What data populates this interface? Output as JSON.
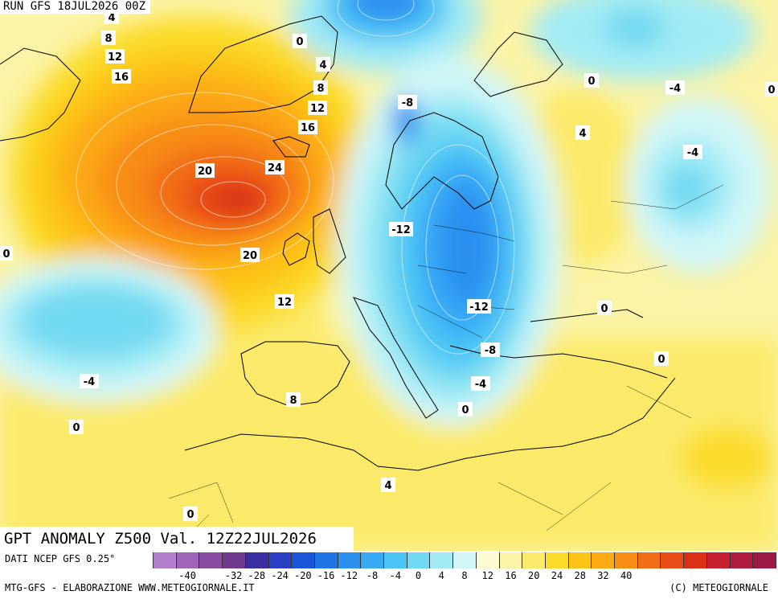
{
  "header": {
    "run": "RUN GFS 18JUL2026 00Z"
  },
  "title": "GPT ANOMALY Z500 Val. 12Z22JUL2026",
  "source": "DATI NCEP GFS 0.25°",
  "footer_left": "MTG-GFS - ELABORAZIONE WWW.METEOGIORNALE.IT",
  "footer_right": "(C) METEOGIORNALE",
  "colorbar": {
    "tick_labels": [
      "-40",
      "-32",
      "-28",
      "-24",
      "-20",
      "-16",
      "-12",
      "-8",
      "-4",
      "0",
      "4",
      "8",
      "12",
      "16",
      "20",
      "24",
      "28",
      "32",
      "40"
    ],
    "colors": [
      "#b27fcc",
      "#9e64b8",
      "#8a4ca3",
      "#6e3a8f",
      "#3b2ea0",
      "#2b3fc4",
      "#1a57d8",
      "#1f74e6",
      "#2a90f0",
      "#37a9f5",
      "#4cc4f5",
      "#72d9f2",
      "#a3ebf4",
      "#d2f6f8",
      "#fdfbd2",
      "#fbf3a6",
      "#fbea6b",
      "#fbdc2a",
      "#fcc416",
      "#fca914",
      "#f88d13",
      "#f26e14",
      "#e94c17",
      "#d93016",
      "#c81f30",
      "#b11b3e",
      "#9d1a47"
    ]
  },
  "map_labels": [
    "4",
    "8",
    "12",
    "16",
    "0",
    "4",
    "8",
    "12",
    "16",
    "20",
    "24",
    "-8",
    "0",
    "-4",
    "4",
    "-4",
    "0",
    "-12",
    "20",
    "12",
    "-12",
    "0",
    "-8",
    "0",
    "-4",
    "-4",
    "8",
    "0",
    "0",
    "4",
    "0"
  ],
  "map_colors": {
    "sea_background": "#fbf3a6",
    "coast": "#000000"
  }
}
